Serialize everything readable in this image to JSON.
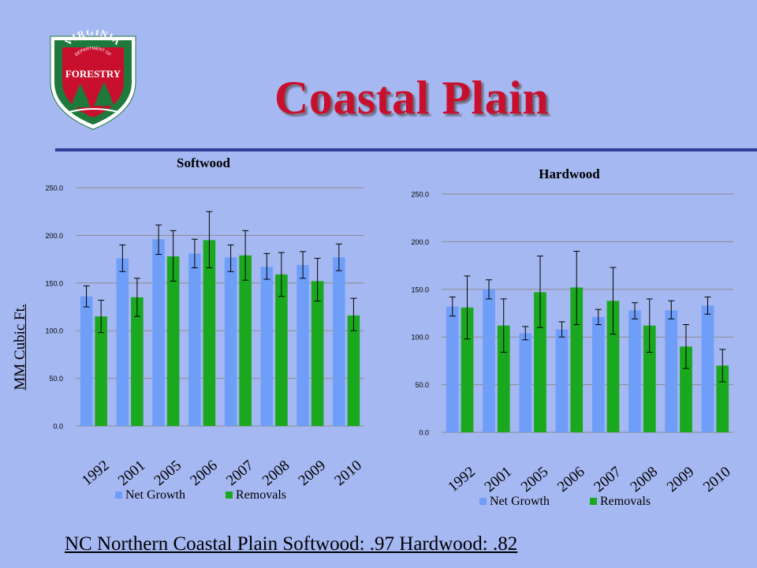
{
  "slide": {
    "title": "Coastal Plain",
    "y_axis_label": "MM Cubic Ft.",
    "footnote": "NC Northern Coastal Plain Softwood: .97  Hardwood: .82"
  },
  "logo": {
    "top_text": "VIRGINIA",
    "sub_text": "DEPARTMENT OF",
    "main_text": "FORESTRY"
  },
  "colors": {
    "background": "#a6b8f2",
    "title": "#c8102e",
    "divider": "#2f3c98",
    "net_growth": "#6f9ef8",
    "removals": "#1aa81e",
    "logo_green": "#1e7a3c",
    "logo_red": "#c8102e"
  },
  "chart_data": [
    {
      "type": "bar",
      "title": "Softwood",
      "categories": [
        "1992",
        "2001",
        "2005",
        "2006",
        "2007",
        "2008",
        "2009",
        "2010"
      ],
      "series": [
        {
          "name": "Net Growth",
          "values": [
            136,
            176,
            196,
            181,
            177,
            167,
            169,
            177
          ],
          "error_low": [
            125,
            162,
            180,
            166,
            162,
            154,
            155,
            163
          ],
          "error_high": [
            147,
            190,
            211,
            196,
            190,
            181,
            183,
            191
          ]
        },
        {
          "name": "Removals",
          "values": [
            115,
            135,
            178,
            195,
            179,
            159,
            152,
            116
          ],
          "error_low": [
            98,
            115,
            152,
            166,
            153,
            136,
            131,
            100
          ],
          "error_high": [
            132,
            155,
            205,
            225,
            205,
            182,
            176,
            134
          ]
        }
      ],
      "ylim": [
        0,
        250
      ],
      "yticks": [
        "0.0",
        "50.0",
        "100.0",
        "150.0",
        "200.0",
        "250.0"
      ],
      "grid": true,
      "legend_position": "bottom"
    },
    {
      "type": "bar",
      "title": "Hardwood",
      "categories": [
        "1992",
        "2001",
        "2005",
        "2006",
        "2007",
        "2008",
        "2009",
        "2010"
      ],
      "series": [
        {
          "name": "Net Growth",
          "values": [
            132,
            150,
            104,
            108,
            121,
            128,
            128,
            133
          ],
          "error_low": [
            122,
            140,
            97,
            100,
            113,
            119,
            119,
            124
          ],
          "error_high": [
            142,
            160,
            111,
            116,
            129,
            136,
            138,
            142
          ]
        },
        {
          "name": "Removals",
          "values": [
            131,
            112,
            147,
            152,
            138,
            112,
            90,
            70
          ],
          "error_low": [
            98,
            84,
            110,
            113,
            103,
            84,
            67,
            53
          ],
          "error_high": [
            164,
            140,
            185,
            190,
            173,
            140,
            113,
            87
          ]
        }
      ],
      "ylim": [
        0,
        250
      ],
      "yticks": [
        "0.0",
        "50.0",
        "100.0",
        "150.0",
        "200.0",
        "250.0"
      ],
      "grid": true,
      "legend_position": "bottom"
    }
  ]
}
